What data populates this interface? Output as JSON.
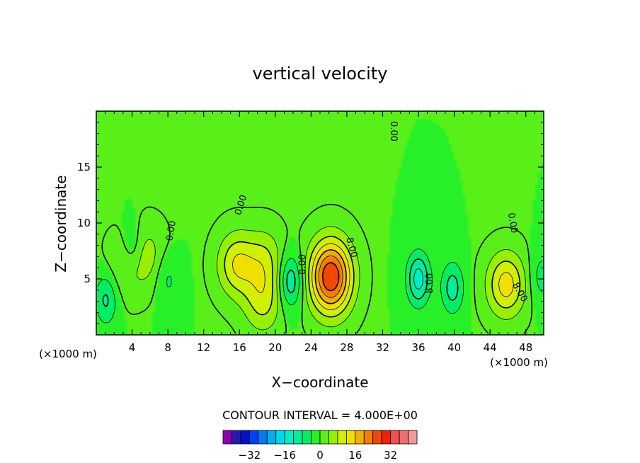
{
  "chart_data": {
    "type": "heatmap",
    "title": "vertical velocity",
    "xlabel": "X−coordinate",
    "ylabel": "Z−coordinate",
    "xunit_left": "(×1000 m)",
    "xunit_right": "(×1000 m)",
    "xlim": [
      0,
      50
    ],
    "ylim": [
      0,
      20
    ],
    "xticks": [
      4,
      8,
      12,
      16,
      20,
      24,
      28,
      32,
      36,
      40,
      44,
      48
    ],
    "xtick_labels": [
      "4",
      "8",
      "12",
      "16",
      "20",
      "24",
      "28",
      "32",
      "36",
      "40",
      "44",
      "48"
    ],
    "yticks": [
      5,
      10,
      15
    ],
    "ytick_labels": [
      "5",
      "10",
      "15"
    ],
    "grid": false,
    "contour_interval_text": "CONTOUR INTERVAL = 4.000E+00",
    "contour_labels": [
      {
        "text": "0.00",
        "x": 16.2,
        "y": 11.6,
        "angle": -72
      },
      {
        "text": "0.00",
        "x": 33.2,
        "y": 18.2,
        "angle": 90
      },
      {
        "text": "0.00",
        "x": 8.4,
        "y": 9.3,
        "angle": -80
      },
      {
        "text": "0.00",
        "x": 23.1,
        "y": 6.3,
        "angle": -90
      },
      {
        "text": "8.00",
        "x": 28.5,
        "y": 7.8,
        "angle": 75
      },
      {
        "text": "0.00",
        "x": 46.5,
        "y": 10.0,
        "angle": 80
      },
      {
        "text": "8.00",
        "x": 47.3,
        "y": 3.8,
        "angle": 60
      },
      {
        "text": "8.00",
        "x": 37.3,
        "y": 4.6,
        "angle": -90
      }
    ],
    "features": [
      {
        "kind": "updraft",
        "x": 26.2,
        "z": 5.2,
        "peak": 28
      },
      {
        "kind": "updraft",
        "x": 45.8,
        "z": 4.5,
        "peak": 14
      },
      {
        "kind": "updraft",
        "x": 15.7,
        "z": 6.3,
        "peak": 12
      },
      {
        "kind": "updraft",
        "x": 18.6,
        "z": 3.0,
        "peak": 9
      },
      {
        "kind": "updraft",
        "x": 18.8,
        "z": 6.6,
        "peak": 8
      },
      {
        "kind": "updraft",
        "x": 3.5,
        "z": 6.2,
        "peak": 6
      },
      {
        "kind": "updraft",
        "x": 5.7,
        "z": 7.2,
        "peak": 5
      },
      {
        "kind": "downdraft",
        "x": 21.7,
        "z": 4.8,
        "peak": -12
      },
      {
        "kind": "downdraft",
        "x": 36.0,
        "z": 5.0,
        "peak": -14
      },
      {
        "kind": "downdraft",
        "x": 39.8,
        "z": 4.2,
        "peak": -10
      },
      {
        "kind": "downdraft",
        "x": 1.1,
        "z": 3.2,
        "peak": -9
      },
      {
        "kind": "downdraft",
        "x": 4.0,
        "z": 7.5,
        "peak": -7
      },
      {
        "kind": "downdraft",
        "x": 8.0,
        "z": 5.0,
        "peak": -5
      },
      {
        "kind": "downdraft",
        "x": 49.8,
        "z": 5.2,
        "peak": -6
      }
    ],
    "colorbar": {
      "colors": [
        "#8a00b0",
        "#2a1aa8",
        "#0010d0",
        "#0040f0",
        "#0a78f0",
        "#00b0ee",
        "#00d8ee",
        "#00eec8",
        "#00ee98",
        "#00ee66",
        "#28f028",
        "#58f018",
        "#98f000",
        "#d0f000",
        "#f0e000",
        "#f0b000",
        "#f08000",
        "#f04800",
        "#f02000",
        "#f05050",
        "#f06e6e",
        "#f09a9a"
      ],
      "tick_values": [
        -32,
        -16,
        0,
        16,
        32
      ],
      "tick_labels": [
        "−32",
        "−16",
        "0",
        "16",
        "32"
      ],
      "vmin": -44,
      "vmax": 44
    }
  }
}
